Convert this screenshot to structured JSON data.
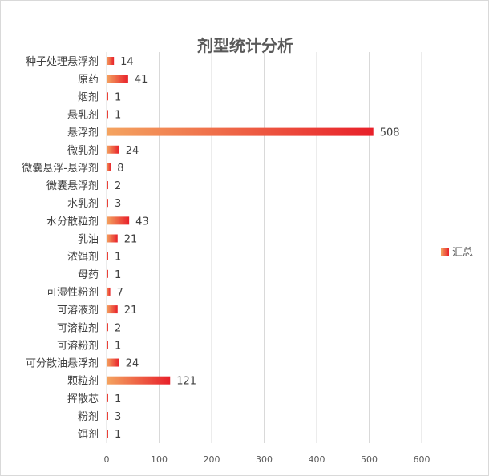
{
  "chart_data": {
    "type": "bar",
    "orientation": "horizontal",
    "title": "剂型统计分析",
    "categories": [
      "种子处理悬浮剂",
      "原药",
      "烟剂",
      "悬乳剂",
      "悬浮剂",
      "微乳剂",
      "微囊悬浮-悬浮剂",
      "微囊悬浮剂",
      "水乳剂",
      "水分散粒剂",
      "乳油",
      "浓饵剂",
      "母药",
      "可湿性粉剂",
      "可溶液剂",
      "可溶粒剂",
      "可溶粉剂",
      "可分散油悬浮剂",
      "颗粒剂",
      "挥散芯",
      "粉剂",
      "饵剂"
    ],
    "series": [
      {
        "name": "汇总",
        "values": [
          14,
          41,
          1,
          1,
          508,
          24,
          8,
          2,
          3,
          43,
          21,
          1,
          1,
          7,
          21,
          2,
          1,
          24,
          121,
          1,
          3,
          1
        ]
      }
    ],
    "xticks": [
      "0",
      "100",
      "200",
      "300",
      "400",
      "500",
      "600"
    ],
    "xlim": [
      0,
      600
    ],
    "grid": true,
    "legend_position": "right",
    "colors": {
      "bar_start": "#f4a460",
      "bar_end": "#e8202a",
      "grid": "#d9d9d9"
    }
  }
}
